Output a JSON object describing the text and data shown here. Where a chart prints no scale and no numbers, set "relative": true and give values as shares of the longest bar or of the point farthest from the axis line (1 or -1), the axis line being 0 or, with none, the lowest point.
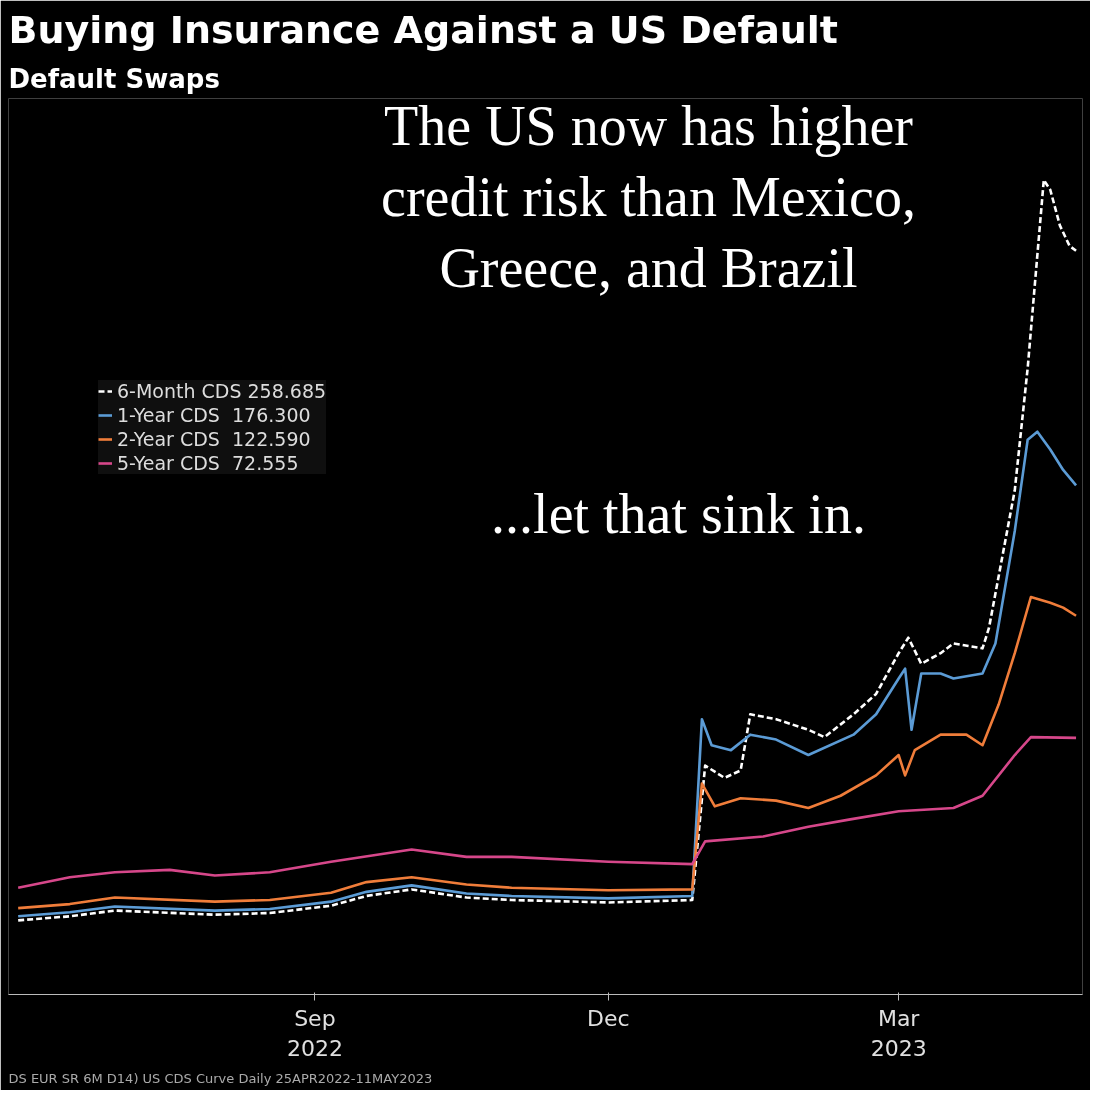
{
  "chart_data": {
    "type": "line",
    "title": "Buying Insurance Against a US Default",
    "subtitle": "Default Swaps",
    "relative": true,
    "xlim": [
      "2022-06-12",
      "2023-05-11"
    ],
    "xticks": [
      {
        "value": "2022-09-15",
        "label": "Sep\n2022"
      },
      {
        "value": "2022-12-15",
        "label": "Dec"
      },
      {
        "value": "2023-03-15",
        "label": "Mar\n2023"
      }
    ],
    "grid": false,
    "legend": "top left",
    "annotations": [
      "The US now has higher credit risk than Mexico, Greece, and Brazil",
      "...let that sink in.",
      "DS EUR SR 6M D14) US CDS Curve  Daily 25APR2022-11MAY2023"
    ],
    "series": [
      {
        "name": "6-Month CDS 258.685",
        "color": "#ffffff",
        "line_style": "dashed",
        "x": [
          "2022-06-15",
          "2022-07-01",
          "2022-07-15",
          "2022-08-15",
          "2022-09-01",
          "2022-09-20",
          "2022-10-01",
          "2022-10-15",
          "2022-11-01",
          "2022-11-15",
          "2022-12-15",
          "2023-01-10",
          "2023-01-14",
          "2023-01-20",
          "2023-01-25",
          "2023-01-28",
          "2023-02-05",
          "2023-02-15",
          "2023-02-20",
          "2023-03-01",
          "2023-03-08",
          "2023-03-15",
          "2023-03-18",
          "2023-03-22",
          "2023-03-28",
          "2023-04-01",
          "2023-04-10",
          "2023-04-12",
          "2023-04-20",
          "2023-04-24",
          "2023-04-29",
          "2023-05-01",
          "2023-05-04",
          "2023-05-07",
          "2023-05-09"
        ],
        "values": [
          0.091,
          0.096,
          0.103,
          0.098,
          0.1,
          0.109,
          0.121,
          0.129,
          0.119,
          0.116,
          0.113,
          0.116,
          0.281,
          0.266,
          0.275,
          0.344,
          0.338,
          0.325,
          0.316,
          0.344,
          0.369,
          0.419,
          0.438,
          0.406,
          0.419,
          0.431,
          0.425,
          0.45,
          0.619,
          0.769,
          1.0,
          0.988,
          0.944,
          0.919,
          0.913
        ]
      },
      {
        "name": "1-Year CDS  176.300",
        "color": "#5b9bd5",
        "line_style": "solid",
        "x": [
          "2022-06-15",
          "2022-07-01",
          "2022-07-15",
          "2022-08-15",
          "2022-09-01",
          "2022-09-20",
          "2022-10-01",
          "2022-10-15",
          "2022-11-01",
          "2022-11-15",
          "2022-12-15",
          "2023-01-10",
          "2023-01-13",
          "2023-01-16",
          "2023-01-22",
          "2023-01-28",
          "2023-02-05",
          "2023-02-15",
          "2023-03-01",
          "2023-03-08",
          "2023-03-15",
          "2023-03-17",
          "2023-03-19",
          "2023-03-22",
          "2023-03-28",
          "2023-04-01",
          "2023-04-10",
          "2023-04-14",
          "2023-04-20",
          "2023-04-24",
          "2023-04-27",
          "2023-05-01",
          "2023-05-05",
          "2023-05-09"
        ],
        "values": [
          0.096,
          0.101,
          0.108,
          0.103,
          0.105,
          0.114,
          0.126,
          0.134,
          0.124,
          0.121,
          0.118,
          0.121,
          0.338,
          0.306,
          0.3,
          0.319,
          0.313,
          0.294,
          0.319,
          0.344,
          0.388,
          0.4,
          0.325,
          0.394,
          0.394,
          0.388,
          0.394,
          0.431,
          0.569,
          0.681,
          0.691,
          0.669,
          0.644,
          0.625
        ]
      },
      {
        "name": "2-Year CDS  122.590",
        "color": "#f07d3a",
        "line_style": "solid",
        "x": [
          "2022-06-15",
          "2022-07-01",
          "2022-07-15",
          "2022-08-15",
          "2022-09-01",
          "2022-09-20",
          "2022-10-01",
          "2022-10-15",
          "2022-11-01",
          "2022-11-15",
          "2022-12-15",
          "2023-01-10",
          "2023-01-13",
          "2023-01-17",
          "2023-01-25",
          "2023-02-05",
          "2023-02-15",
          "2023-02-25",
          "2023-03-08",
          "2023-03-15",
          "2023-03-17",
          "2023-03-20",
          "2023-03-28",
          "2023-04-05",
          "2023-04-10",
          "2023-04-15",
          "2023-04-20",
          "2023-04-25",
          "2023-05-01",
          "2023-05-05",
          "2023-05-09"
        ],
        "values": [
          0.106,
          0.111,
          0.119,
          0.114,
          0.116,
          0.125,
          0.138,
          0.144,
          0.135,
          0.131,
          0.128,
          0.129,
          0.259,
          0.231,
          0.241,
          0.238,
          0.229,
          0.244,
          0.269,
          0.294,
          0.269,
          0.3,
          0.319,
          0.319,
          0.306,
          0.356,
          0.419,
          0.488,
          0.481,
          0.475,
          0.465
        ]
      },
      {
        "name": "5-Year CDS  72.555",
        "color": "#d6478a",
        "line_style": "solid",
        "x": [
          "2022-06-15",
          "2022-07-01",
          "2022-07-15",
          "2022-08-01",
          "2022-08-15",
          "2022-09-01",
          "2022-09-20",
          "2022-10-15",
          "2022-11-01",
          "2022-11-15",
          "2022-12-15",
          "2023-01-10",
          "2023-01-14",
          "2023-02-01",
          "2023-02-15",
          "2023-02-28",
          "2023-03-15",
          "2023-04-01",
          "2023-04-10",
          "2023-04-20",
          "2023-04-25",
          "2023-05-09"
        ],
        "values": [
          0.131,
          0.144,
          0.15,
          0.153,
          0.146,
          0.15,
          0.163,
          0.178,
          0.169,
          0.169,
          0.163,
          0.16,
          0.188,
          0.194,
          0.206,
          0.215,
          0.225,
          0.229,
          0.244,
          0.294,
          0.316,
          0.315
        ]
      }
    ]
  }
}
